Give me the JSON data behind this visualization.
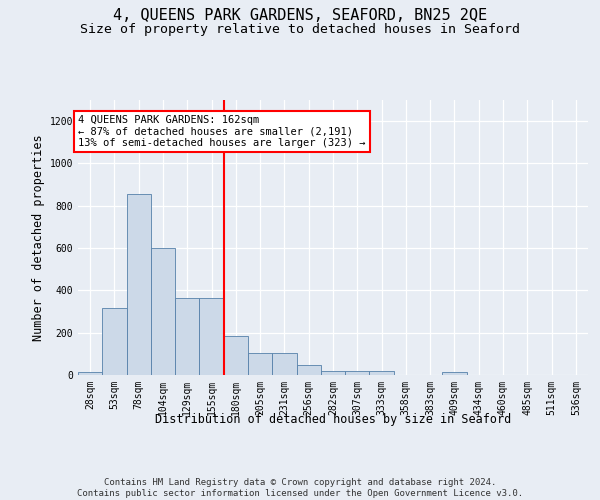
{
  "title": "4, QUEENS PARK GARDENS, SEAFORD, BN25 2QE",
  "subtitle": "Size of property relative to detached houses in Seaford",
  "xlabel": "Distribution of detached houses by size in Seaford",
  "ylabel": "Number of detached properties",
  "footer_line1": "Contains HM Land Registry data © Crown copyright and database right 2024.",
  "footer_line2": "Contains public sector information licensed under the Open Government Licence v3.0.",
  "bin_labels": [
    "28sqm",
    "53sqm",
    "78sqm",
    "104sqm",
    "129sqm",
    "155sqm",
    "180sqm",
    "205sqm",
    "231sqm",
    "256sqm",
    "282sqm",
    "307sqm",
    "333sqm",
    "358sqm",
    "383sqm",
    "409sqm",
    "434sqm",
    "460sqm",
    "485sqm",
    "511sqm",
    "536sqm"
  ],
  "bar_values": [
    15,
    315,
    855,
    600,
    365,
    365,
    185,
    105,
    105,
    45,
    20,
    20,
    20,
    0,
    0,
    15,
    0,
    0,
    0,
    0,
    0
  ],
  "bar_color": "#ccd9e8",
  "bar_edge_color": "#5580aa",
  "vline_x": 6.0,
  "vline_color": "red",
  "annotation_text": "4 QUEENS PARK GARDENS: 162sqm\n← 87% of detached houses are smaller (2,191)\n13% of semi-detached houses are larger (323) →",
  "annotation_box_facecolor": "white",
  "annotation_box_edgecolor": "red",
  "ylim": [
    0,
    1300
  ],
  "yticks": [
    0,
    200,
    400,
    600,
    800,
    1000,
    1200
  ],
  "bg_color": "#e8edf4",
  "title_fontsize": 11,
  "subtitle_fontsize": 9.5,
  "tick_fontsize": 7,
  "axis_label_fontsize": 8.5,
  "annotation_fontsize": 7.5,
  "footer_fontsize": 6.5
}
